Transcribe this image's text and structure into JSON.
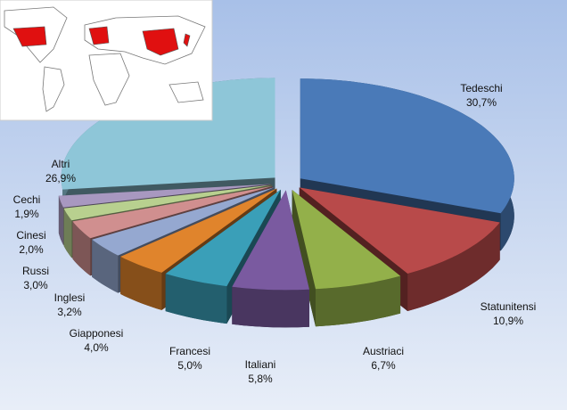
{
  "chart_data": {
    "type": "pie",
    "categories": [
      "Tedeschi",
      "Statunitensi",
      "Austriaci",
      "Italiani",
      "Francesi",
      "Giapponesi",
      "Inglesi",
      "Russi",
      "Cinesi",
      "Cechi",
      "Altri"
    ],
    "values": [
      30.7,
      10.9,
      6.7,
      5.8,
      5.0,
      4.0,
      3.2,
      3.0,
      2.0,
      1.9,
      26.9
    ],
    "value_labels": [
      "30,7%",
      "10,9%",
      "6,7%",
      "5,8%",
      "5,0%",
      "4,0%",
      "3,2%",
      "3,0%",
      "2,0%",
      "1,9%",
      "26,9%"
    ],
    "colors": [
      "#4a7ab8",
      "#b84a4a",
      "#93b04a",
      "#7a5aa0",
      "#3a9fb8",
      "#e0842c",
      "#95a8d0",
      "#d08f8f",
      "#b8d08f",
      "#a898c0",
      "#8ec6d8"
    ]
  }
}
